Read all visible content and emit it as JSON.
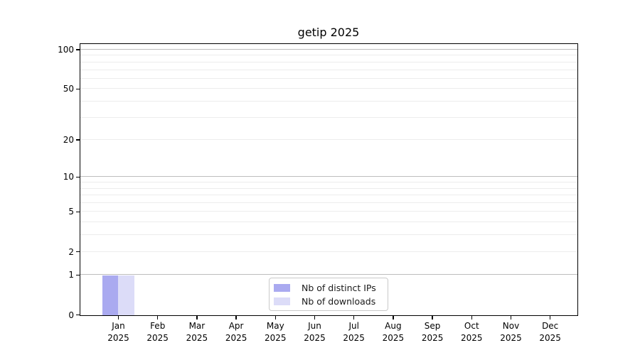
{
  "chart_data": {
    "type": "bar",
    "title": "getip 2025",
    "categories": [
      "Jan\n2025",
      "Feb\n2025",
      "Mar\n2025",
      "Apr\n2025",
      "May\n2025",
      "Jun\n2025",
      "Jul\n2025",
      "Aug\n2025",
      "Sep\n2025",
      "Oct\n2025",
      "Nov\n2025",
      "Dec\n2025"
    ],
    "series": [
      {
        "name": "Nb of distinct IPs",
        "color": "#aaaaf0",
        "values": [
          1,
          0,
          0,
          0,
          0,
          0,
          0,
          0,
          0,
          0,
          0,
          0
        ]
      },
      {
        "name": "Nb of downloads",
        "color": "#dcdcf8",
        "values": [
          1,
          0,
          0,
          0,
          0,
          0,
          0,
          0,
          0,
          0,
          0,
          0
        ]
      }
    ],
    "xlabel": "",
    "ylabel": "",
    "yscale": "log1p",
    "yticks": [
      0,
      1,
      2,
      5,
      10,
      20,
      50,
      100
    ],
    "ylim": [
      0,
      110
    ],
    "grid": "horizontal",
    "grid_major": [
      1,
      10,
      100
    ],
    "grid_minor": [
      2,
      3,
      4,
      5,
      6,
      7,
      8,
      9,
      20,
      30,
      40,
      50,
      60,
      70,
      80,
      90
    ],
    "legend_position": "lower center",
    "colors": {
      "grid_major": "#bdbdbd",
      "grid_minor": "#ececec",
      "axis": "#000000",
      "legend_border": "#c9c9c9",
      "text": "#1a1a1a"
    }
  }
}
